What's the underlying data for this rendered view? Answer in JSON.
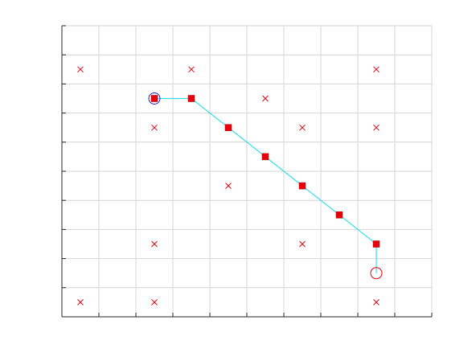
{
  "chart_data": {
    "type": "scatter",
    "title": "",
    "xlabel": "",
    "ylabel": "",
    "xlim": [
      0,
      10
    ],
    "ylim": [
      0,
      10
    ],
    "grid": true,
    "tick_labels_shown": false,
    "colors": {
      "obstacle": "#e8000b",
      "path": "#33e0e8",
      "start": "#2222cc",
      "goal": "#e8000b",
      "grid": "#d4d4d4",
      "axis": "#262626"
    },
    "obstacles": [
      [
        0.5,
        8.5
      ],
      [
        3.5,
        8.5
      ],
      [
        8.5,
        8.5
      ],
      [
        5.5,
        7.5
      ],
      [
        2.5,
        6.5
      ],
      [
        6.5,
        6.5
      ],
      [
        8.5,
        6.5
      ],
      [
        4.5,
        4.5
      ],
      [
        2.5,
        2.5
      ],
      [
        6.5,
        2.5
      ],
      [
        0.5,
        0.5
      ],
      [
        2.5,
        0.5
      ],
      [
        8.5,
        0.5
      ]
    ],
    "path": [
      [
        2.5,
        7.5
      ],
      [
        3.5,
        7.5
      ],
      [
        4.5,
        6.5
      ],
      [
        5.5,
        5.5
      ],
      [
        6.5,
        4.5
      ],
      [
        7.5,
        3.5
      ],
      [
        8.5,
        2.5
      ],
      [
        8.5,
        1.5
      ]
    ],
    "start": [
      2.5,
      7.5
    ],
    "goal": [
      8.5,
      1.5
    ]
  }
}
